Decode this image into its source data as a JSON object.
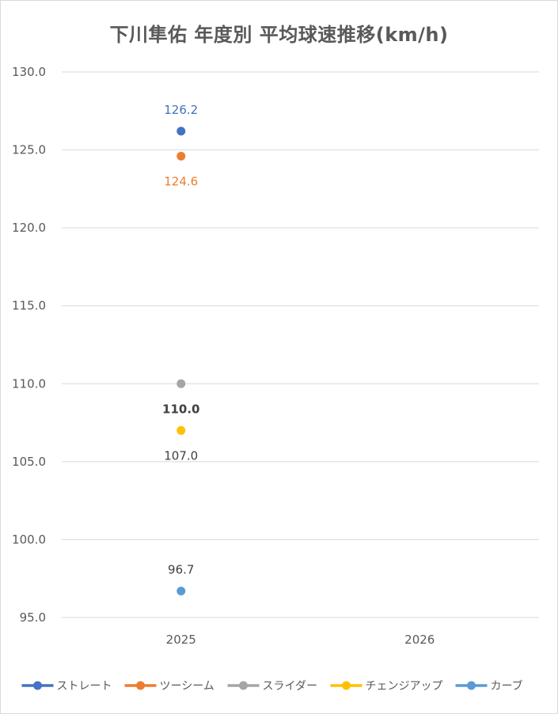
{
  "chart_data": {
    "type": "scatter",
    "title": "下川隼佑 年度別 平均球速推移(km/h)",
    "categories": [
      "2025",
      "2026"
    ],
    "ylim": [
      95.0,
      130.0
    ],
    "yticks": [
      "130.0",
      "125.0",
      "120.0",
      "115.0",
      "110.0",
      "105.0",
      "100.0",
      "95.0"
    ],
    "grid": "horizontal",
    "legend_position": "bottom",
    "series": [
      {
        "name": "ストレート",
        "color": "#4472c4",
        "values": [
          126.2,
          null
        ],
        "labels": [
          "126.2",
          ""
        ],
        "label_pos": "above",
        "label_bold": false
      },
      {
        "name": "ツーシーム",
        "color": "#ed7d31",
        "values": [
          124.6,
          null
        ],
        "labels": [
          "124.6",
          ""
        ],
        "label_pos": "below",
        "label_bold": false
      },
      {
        "name": "スライダー",
        "color": "#a5a5a5",
        "values": [
          110.0,
          null
        ],
        "labels": [
          "110.0",
          ""
        ],
        "label_pos": "below",
        "label_bold": true
      },
      {
        "name": "チェンジアップ",
        "color": "#ffc000",
        "values": [
          107.0,
          null
        ],
        "labels": [
          "107.0",
          ""
        ],
        "label_pos": "below",
        "label_bold": false
      },
      {
        "name": "カーブ",
        "color": "#5b9bd5",
        "values": [
          96.7,
          null
        ],
        "labels": [
          "96.7",
          ""
        ],
        "label_pos": "above",
        "label_bold": false
      }
    ]
  }
}
